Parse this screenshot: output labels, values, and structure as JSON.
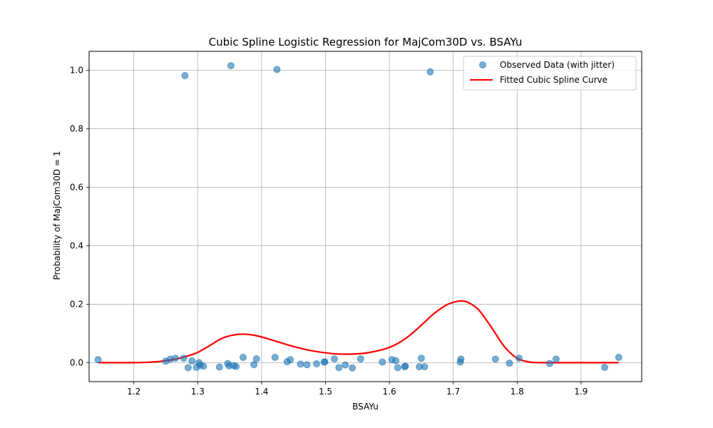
{
  "chart_data": {
    "type": "scatter",
    "title": "Cubic Spline Logistic Regression for MajCom30D vs. BSAYu",
    "xlabel": "BSAYu",
    "ylabel": "Probability of MajCom30D = 1",
    "xlim": [
      1.13,
      1.995
    ],
    "ylim": [
      -0.065,
      1.065
    ],
    "xticks": [
      "1.2",
      "1.3",
      "1.4",
      "1.5",
      "1.6",
      "1.7",
      "1.8",
      "1.9"
    ],
    "yticks": [
      "0.0",
      "0.2",
      "0.4",
      "0.6",
      "0.8",
      "1.0"
    ],
    "grid": true,
    "legend_position": "top-right",
    "series": [
      {
        "name": "Observed Data (with jitter)",
        "kind": "scatter",
        "color": "#1f77b4",
        "points": [
          [
            1.144,
            0.01
          ],
          [
            1.25,
            0.005
          ],
          [
            1.257,
            0.012
          ],
          [
            1.265,
            0.015
          ],
          [
            1.278,
            0.015
          ],
          [
            1.28,
            0.982
          ],
          [
            1.285,
            -0.017
          ],
          [
            1.291,
            0.006
          ],
          [
            1.298,
            -0.016
          ],
          [
            1.302,
            0.0
          ],
          [
            1.304,
            -0.009
          ],
          [
            1.309,
            -0.012
          ],
          [
            1.334,
            -0.015
          ],
          [
            1.347,
            -0.003
          ],
          [
            1.349,
            -0.011
          ],
          [
            1.352,
            1.016
          ],
          [
            1.356,
            -0.01
          ],
          [
            1.36,
            -0.013
          ],
          [
            1.371,
            0.018
          ],
          [
            1.388,
            -0.007
          ],
          [
            1.392,
            0.013
          ],
          [
            1.421,
            0.018
          ],
          [
            1.424,
            1.003
          ],
          [
            1.44,
            0.003
          ],
          [
            1.445,
            0.01
          ],
          [
            1.461,
            -0.005
          ],
          [
            1.471,
            -0.007
          ],
          [
            1.486,
            -0.004
          ],
          [
            1.498,
            0.002
          ],
          [
            1.499,
            0.003
          ],
          [
            1.514,
            0.013
          ],
          [
            1.521,
            -0.017
          ],
          [
            1.531,
            -0.008
          ],
          [
            1.542,
            -0.018
          ],
          [
            1.555,
            0.013
          ],
          [
            1.589,
            0.002
          ],
          [
            1.604,
            0.01
          ],
          [
            1.61,
            0.007
          ],
          [
            1.613,
            -0.017
          ],
          [
            1.624,
            -0.014
          ],
          [
            1.625,
            -0.012
          ],
          [
            1.647,
            -0.014
          ],
          [
            1.65,
            0.015
          ],
          [
            1.655,
            -0.014
          ],
          [
            1.664,
            0.995
          ],
          [
            1.711,
            0.002
          ],
          [
            1.712,
            0.012
          ],
          [
            1.766,
            0.012
          ],
          [
            1.788,
            -0.002
          ],
          [
            1.803,
            0.015
          ],
          [
            1.851,
            -0.003
          ],
          [
            1.861,
            0.012
          ],
          [
            1.937,
            -0.016
          ],
          [
            1.959,
            0.018
          ]
        ]
      },
      {
        "name": "Fitted Cubic Spline Curve",
        "kind": "line",
        "color": "#ff0000",
        "points": [
          [
            1.144,
            0.0
          ],
          [
            1.16,
            0.0
          ],
          [
            1.18,
            0.0
          ],
          [
            1.2,
            0.0
          ],
          [
            1.22,
            0.001
          ],
          [
            1.24,
            0.004
          ],
          [
            1.26,
            0.01
          ],
          [
            1.28,
            0.02
          ],
          [
            1.3,
            0.035
          ],
          [
            1.32,
            0.06
          ],
          [
            1.34,
            0.085
          ],
          [
            1.365,
            0.097
          ],
          [
            1.39,
            0.093
          ],
          [
            1.42,
            0.075
          ],
          [
            1.45,
            0.055
          ],
          [
            1.48,
            0.04
          ],
          [
            1.51,
            0.031
          ],
          [
            1.535,
            0.029
          ],
          [
            1.56,
            0.032
          ],
          [
            1.59,
            0.045
          ],
          [
            1.61,
            0.062
          ],
          [
            1.63,
            0.09
          ],
          [
            1.65,
            0.128
          ],
          [
            1.67,
            0.168
          ],
          [
            1.69,
            0.198
          ],
          [
            1.705,
            0.209
          ],
          [
            1.715,
            0.211
          ],
          [
            1.725,
            0.204
          ],
          [
            1.74,
            0.18
          ],
          [
            1.76,
            0.12
          ],
          [
            1.78,
            0.055
          ],
          [
            1.8,
            0.015
          ],
          [
            1.82,
            0.002
          ],
          [
            1.84,
            0.0
          ],
          [
            1.88,
            0.0
          ],
          [
            1.92,
            0.0
          ],
          [
            1.959,
            0.0
          ]
        ]
      }
    ]
  }
}
